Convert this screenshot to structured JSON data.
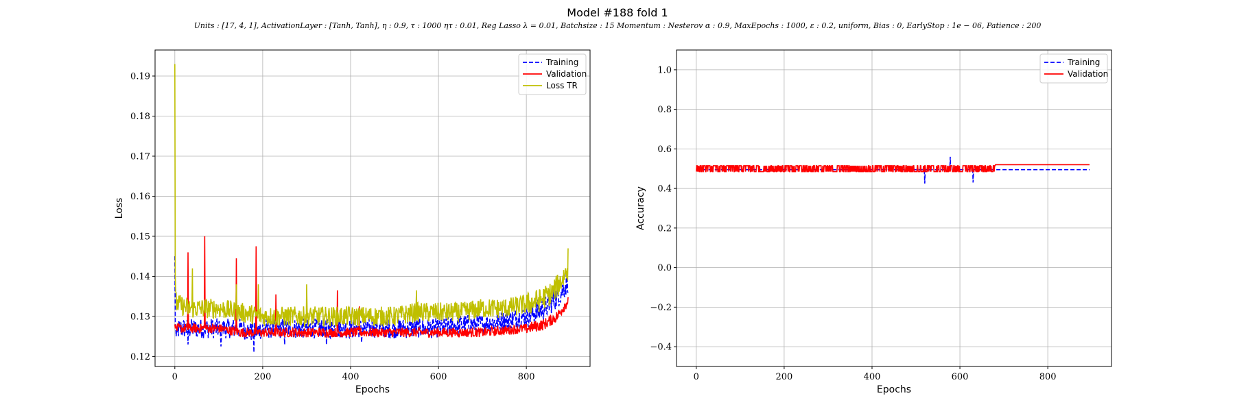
{
  "figure": {
    "title": "Model #188 fold 1",
    "subtitle": "Units : [17, 4, 1], ActivationLayer : [Tanh, Tanh], η : 0.9, τ : 1000 ητ : 0.01, Reg Lasso λ = 0.01, Batchsize : 15 Momentum : Nesterov α : 0.9, MaxEpochs : 1000, ε : 0.2, uniform, Bias : 0, EarlyStop : 1e − 06, Patience : 200"
  },
  "chart_data": [
    {
      "type": "line",
      "xlabel": "Epochs",
      "ylabel": "Loss",
      "xlim": [
        -45,
        945
      ],
      "ylim": [
        0.1175,
        0.1965
      ],
      "xticks": [
        0,
        200,
        400,
        600,
        800
      ],
      "yticks": [
        0.12,
        0.13,
        0.14,
        0.15,
        0.16,
        0.17,
        0.18,
        0.19
      ],
      "grid": true,
      "legend": "top-right",
      "series": [
        {
          "name": "Training",
          "color": "#0000ff",
          "style": "dashed",
          "x": [
            0,
            1,
            3,
            10,
            30,
            60,
            100,
            150,
            180,
            200,
            250,
            300,
            350,
            400,
            450,
            500,
            550,
            600,
            650,
            700,
            750,
            800,
            820,
            840,
            860,
            880,
            895
          ],
          "y": [
            0.145,
            0.128,
            0.126,
            0.127,
            0.127,
            0.127,
            0.127,
            0.127,
            0.126,
            0.127,
            0.127,
            0.127,
            0.127,
            0.127,
            0.127,
            0.127,
            0.127,
            0.127,
            0.128,
            0.128,
            0.129,
            0.13,
            0.131,
            0.132,
            0.134,
            0.136,
            0.139
          ],
          "noise": 0.0025,
          "spikes": [
            [
              5,
              0.126
            ],
            [
              30,
              0.123
            ],
            [
              105,
              0.1225
            ],
            [
              180,
              0.121
            ],
            [
              250,
              0.123
            ],
            [
              345,
              0.123
            ],
            [
              425,
              0.1235
            ]
          ]
        },
        {
          "name": "Validation",
          "color": "#ff0000",
          "style": "solid",
          "x": [
            0,
            1,
            3,
            10,
            30,
            60,
            100,
            150,
            200,
            250,
            300,
            350,
            400,
            450,
            500,
            550,
            600,
            650,
            700,
            750,
            800,
            840,
            870,
            895
          ],
          "y": [
            0.128,
            0.127,
            0.127,
            0.127,
            0.127,
            0.127,
            0.127,
            0.126,
            0.126,
            0.126,
            0.126,
            0.126,
            0.126,
            0.126,
            0.126,
            0.126,
            0.126,
            0.126,
            0.126,
            0.1265,
            0.127,
            0.128,
            0.13,
            0.134
          ],
          "noise": 0.0012,
          "spikes": [
            [
              30,
              0.146
            ],
            [
              68,
              0.15
            ],
            [
              140,
              0.1445
            ],
            [
              185,
              0.1475
            ],
            [
              230,
              0.1355
            ],
            [
              370,
              0.1365
            ],
            [
              420,
              0.1325
            ]
          ]
        },
        {
          "name": "Loss TR",
          "color": "#bfbf00",
          "style": "solid",
          "x": [
            0,
            1,
            2,
            5,
            10,
            30,
            60,
            100,
            150,
            200,
            250,
            300,
            350,
            400,
            450,
            500,
            550,
            600,
            650,
            700,
            750,
            800,
            830,
            860,
            880,
            895
          ],
          "y": [
            0.193,
            0.14,
            0.134,
            0.133,
            0.133,
            0.132,
            0.132,
            0.132,
            0.131,
            0.13,
            0.13,
            0.13,
            0.13,
            0.13,
            0.13,
            0.13,
            0.131,
            0.131,
            0.131,
            0.132,
            0.132,
            0.133,
            0.134,
            0.136,
            0.139,
            0.142
          ],
          "noise": 0.0025,
          "spikes": [
            [
              895,
              0.147
            ],
            [
              40,
              0.142
            ],
            [
              140,
              0.138
            ],
            [
              190,
              0.138
            ],
            [
              300,
              0.138
            ],
            [
              550,
              0.1365
            ]
          ]
        }
      ]
    },
    {
      "type": "line",
      "xlabel": "Epochs",
      "ylabel": "Accuracy",
      "xlim": [
        -45,
        945
      ],
      "ylim": [
        -0.5,
        1.1
      ],
      "xticks": [
        0,
        200,
        400,
        600,
        800
      ],
      "yticks": [
        -0.4,
        -0.2,
        0.0,
        0.2,
        0.4,
        0.6,
        0.8,
        1.0
      ],
      "grid": true,
      "legend": "top-right",
      "series": [
        {
          "name": "Training",
          "color": "#0000ff",
          "style": "dashed",
          "x": [
            0,
            895
          ],
          "y": [
            0.495,
            0.495
          ],
          "spikes": [
            [
              520,
              0.425
            ],
            [
              578,
              0.56
            ],
            [
              630,
              0.43
            ]
          ]
        },
        {
          "name": "Validation",
          "color": "#ff0000",
          "style": "solid",
          "x": [
            0,
            895
          ],
          "y": [
            0.52,
            0.52
          ],
          "oscillate_between": [
            0.485,
            0.515
          ],
          "oscillate_until": 680
        }
      ]
    }
  ],
  "tick_labels": {
    "x": [
      "0",
      "200",
      "400",
      "600",
      "800"
    ],
    "loss_y": [
      "0.12",
      "0.13",
      "0.14",
      "0.15",
      "0.16",
      "0.17",
      "0.18",
      "0.19"
    ],
    "acc_y": [
      "−0.4",
      "−0.2",
      "0.0",
      "0.2",
      "0.4",
      "0.6",
      "0.8",
      "1.0"
    ]
  }
}
